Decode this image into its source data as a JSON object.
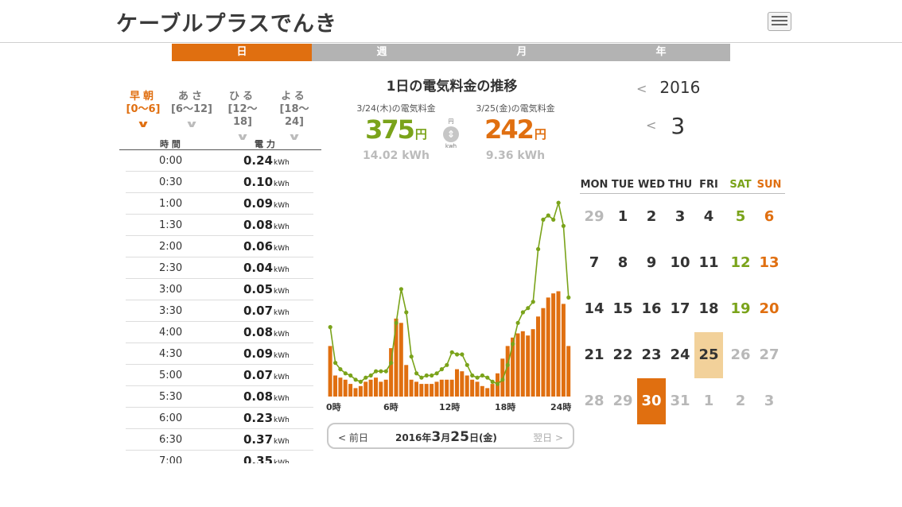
{
  "header": {
    "logo": "ケーブルプラスでんき"
  },
  "tabs": [
    "日",
    "週",
    "月",
    "年"
  ],
  "bands": [
    {
      "name": "早朝",
      "range": "[0〜6]"
    },
    {
      "name": "あさ",
      "range": "[6〜12]"
    },
    {
      "name": "ひる",
      "range": "[12〜18]"
    },
    {
      "name": "よる",
      "range": "[18〜24]"
    }
  ],
  "table": {
    "col_time": "時 間",
    "col_power": "電 力",
    "unit": "kWh",
    "rows": [
      {
        "time": "0:00",
        "value": "0.24"
      },
      {
        "time": "0:30",
        "value": "0.10"
      },
      {
        "time": "1:00",
        "value": "0.09"
      },
      {
        "time": "1:30",
        "value": "0.08"
      },
      {
        "time": "2:00",
        "value": "0.06"
      },
      {
        "time": "2:30",
        "value": "0.04"
      },
      {
        "time": "3:00",
        "value": "0.05"
      },
      {
        "time": "3:30",
        "value": "0.07"
      },
      {
        "time": "4:00",
        "value": "0.08"
      },
      {
        "time": "4:30",
        "value": "0.09"
      },
      {
        "time": "5:00",
        "value": "0.07"
      },
      {
        "time": "5:30",
        "value": "0.08"
      },
      {
        "time": "6:00",
        "value": "0.23"
      },
      {
        "time": "6:30",
        "value": "0.37"
      },
      {
        "time": "7:00",
        "value": "0.35"
      }
    ]
  },
  "center": {
    "title": "1日の電気料金の推移",
    "prev": {
      "label": "3/24(木)の電気料金",
      "amount": "375",
      "yen": "円",
      "kwh": "14.02 kWh",
      "color": "#7aa31a"
    },
    "curr": {
      "label": "3/25(金)の電気料金",
      "amount": "242",
      "yen": "円",
      "kwh": "9.36 kWh",
      "color": "#e06f10"
    },
    "toggle": {
      "top": "円",
      "icon": "⇕",
      "bottom": "kwh"
    },
    "daynav": {
      "prev": "<  前日",
      "date_pre": "2016年",
      "month": "3",
      "m_suffix": "月",
      "day": "25",
      "date_post": "日(金)",
      "next": "翌日  >"
    }
  },
  "chart_data": {
    "type": "bar",
    "x_tick_labels": [
      "0時",
      "6時",
      "12時",
      "18時",
      "24時"
    ],
    "colors": {
      "bars": "#e06f10",
      "line": "#7aa31a"
    },
    "series": [
      {
        "values": [
          0.24,
          0.1,
          0.09,
          0.08,
          0.06,
          0.04,
          0.05,
          0.07,
          0.08,
          0.09,
          0.07,
          0.08,
          0.23,
          0.37,
          0.35,
          0.15,
          0.08,
          0.07,
          0.06,
          0.06,
          0.06,
          0.07,
          0.08,
          0.08,
          0.08,
          0.13,
          0.12,
          0.1,
          0.08,
          0.07,
          0.05,
          0.04,
          0.06,
          0.11,
          0.18,
          0.24,
          0.28,
          0.3,
          0.31,
          0.29,
          0.32,
          0.38,
          0.42,
          0.47,
          0.49,
          0.5,
          0.44,
          0.24
        ]
      },
      {
        "values": [
          0.33,
          0.16,
          0.13,
          0.11,
          0.1,
          0.08,
          0.07,
          0.09,
          0.1,
          0.12,
          0.12,
          0.12,
          0.16,
          0.35,
          0.51,
          0.4,
          0.19,
          0.11,
          0.09,
          0.1,
          0.1,
          0.11,
          0.13,
          0.15,
          0.21,
          0.2,
          0.2,
          0.15,
          0.1,
          0.09,
          0.1,
          0.09,
          0.07,
          0.06,
          0.08,
          0.15,
          0.25,
          0.35,
          0.4,
          0.42,
          0.45,
          0.7,
          0.84,
          0.86,
          0.84,
          0.92,
          0.81,
          0.47
        ]
      }
    ]
  },
  "year_nav": {
    "prev": "<",
    "year": "2016"
  },
  "month_nav": {
    "prev": "<",
    "month": "3"
  },
  "calendar": {
    "weekdays": [
      "MON",
      "TUE",
      "WED",
      "THU",
      "FRI",
      "SAT",
      "SUN"
    ],
    "weeks": [
      [
        "29",
        "1",
        "2",
        "3",
        "4",
        "5",
        "6"
      ],
      [
        "7",
        "8",
        "9",
        "10",
        "11",
        "12",
        "13"
      ],
      [
        "14",
        "15",
        "16",
        "17",
        "18",
        "19",
        "20"
      ],
      [
        "21",
        "22",
        "23",
        "24",
        "25",
        "26",
        "27"
      ],
      [
        "28",
        "29",
        "30",
        "31",
        "1",
        "2",
        "3"
      ]
    ],
    "selected": "25",
    "today": "30"
  }
}
